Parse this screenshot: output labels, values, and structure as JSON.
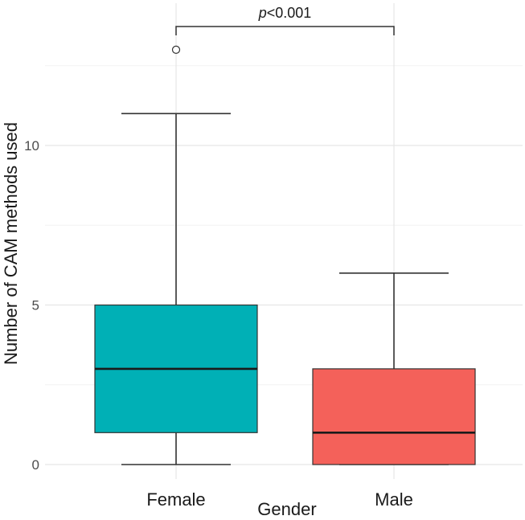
{
  "chart_data": {
    "type": "boxplot",
    "xlabel": "Gender",
    "ylabel": "Number of CAM methods used",
    "ylim": [
      0,
      13
    ],
    "yticks": [
      0,
      5,
      10
    ],
    "grid": true,
    "legend": "none",
    "categories": [
      "Female",
      "Male"
    ],
    "boxes": [
      {
        "category": "Female",
        "min": 0,
        "q1": 1,
        "median": 3,
        "q3": 5,
        "max": 11,
        "outliers": [
          13
        ],
        "color": "#00b0b6"
      },
      {
        "category": "Male",
        "min": 0,
        "q1": 0,
        "median": 1,
        "q3": 3,
        "max": 6,
        "outliers": [],
        "color": "#f4615a"
      }
    ],
    "annotation": {
      "between": [
        "Female",
        "Male"
      ],
      "p_symbol": "p",
      "p_rest": "<0.001"
    }
  }
}
